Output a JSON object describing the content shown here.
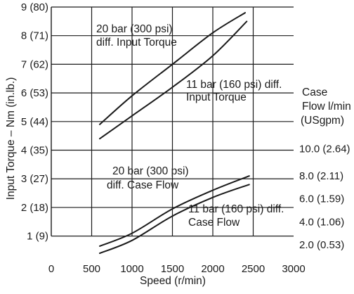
{
  "chart_data": {
    "type": "line",
    "xlabel": "Speed (r/min)",
    "ylabel": "Input Torque – Nm (in.lb.)",
    "y2label_lines": [
      "Case",
      "Flow l/min",
      "(USgpm)"
    ],
    "xlim": [
      0,
      3000
    ],
    "ylim": [
      0.5,
      9
    ],
    "x_ticks": [
      {
        "value": 0,
        "label": "0"
      },
      {
        "value": 500,
        "label": "500"
      },
      {
        "value": 1000,
        "label": "1000"
      },
      {
        "value": 1500,
        "label": "1500"
      },
      {
        "value": 2000,
        "label": "2000"
      },
      {
        "value": 2500,
        "label": "2500"
      },
      {
        "value": 3000,
        "label": "3000"
      }
    ],
    "y_ticks": [
      {
        "value": 1,
        "label": "1 (9)"
      },
      {
        "value": 2,
        "label": "2 (18)"
      },
      {
        "value": 3,
        "label": "3 (27)"
      },
      {
        "value": 4,
        "label": "4 (35)"
      },
      {
        "value": 5,
        "label": "5 (44)"
      },
      {
        "value": 6,
        "label": "6 (53)"
      },
      {
        "value": 7,
        "label": "7 (62)"
      },
      {
        "value": 8,
        "label": "8 (71)"
      },
      {
        "value": 9,
        "label": "9 (80)"
      }
    ],
    "y2_ticks": [
      {
        "value": 0.7,
        "label": "2.0  (0.53)"
      },
      {
        "value": 1.5,
        "label": "4.0  (1.06)"
      },
      {
        "value": 2.3,
        "label": "6.0  (1.59)"
      },
      {
        "value": 3.1,
        "label": "8.0  (2.11)"
      },
      {
        "value": 4.05,
        "label": "10.0  (2.64)"
      }
    ],
    "grid": true,
    "series": [
      {
        "name": "20 bar (300 psi) diff. Input Torque",
        "label_lines": [
          "20 bar (300 psi)",
          "diff. Input Torque"
        ],
        "x": [
          600,
          1000,
          1500,
          2000,
          2400
        ],
        "y": [
          4.9,
          5.9,
          7.0,
          8.1,
          8.8
        ]
      },
      {
        "name": "11 bar (160 psi) diff. Input Torque",
        "label_lines": [
          "11 bar (160 psi) diff.",
          "Input Torque"
        ],
        "x": [
          600,
          1000,
          1500,
          2000,
          2420
        ],
        "y": [
          4.4,
          5.2,
          6.2,
          7.3,
          8.5
        ]
      },
      {
        "name": "20 bar (300 psi) diff. Case Flow",
        "label_lines": [
          "20 bar (300 psi)",
          "diff. Case Flow"
        ],
        "x": [
          600,
          1000,
          1500,
          2000,
          2450
        ],
        "y": [
          0.65,
          1.1,
          1.95,
          2.6,
          3.1
        ]
      },
      {
        "name": "11 bar (160 psi) diff. Case Flow",
        "label_lines": [
          "11 bar (160 psi) diff.",
          "Case Flow"
        ],
        "x": [
          600,
          1000,
          1500,
          2000,
          2450
        ],
        "y": [
          0.4,
          0.85,
          1.7,
          2.35,
          2.8
        ]
      }
    ]
  }
}
